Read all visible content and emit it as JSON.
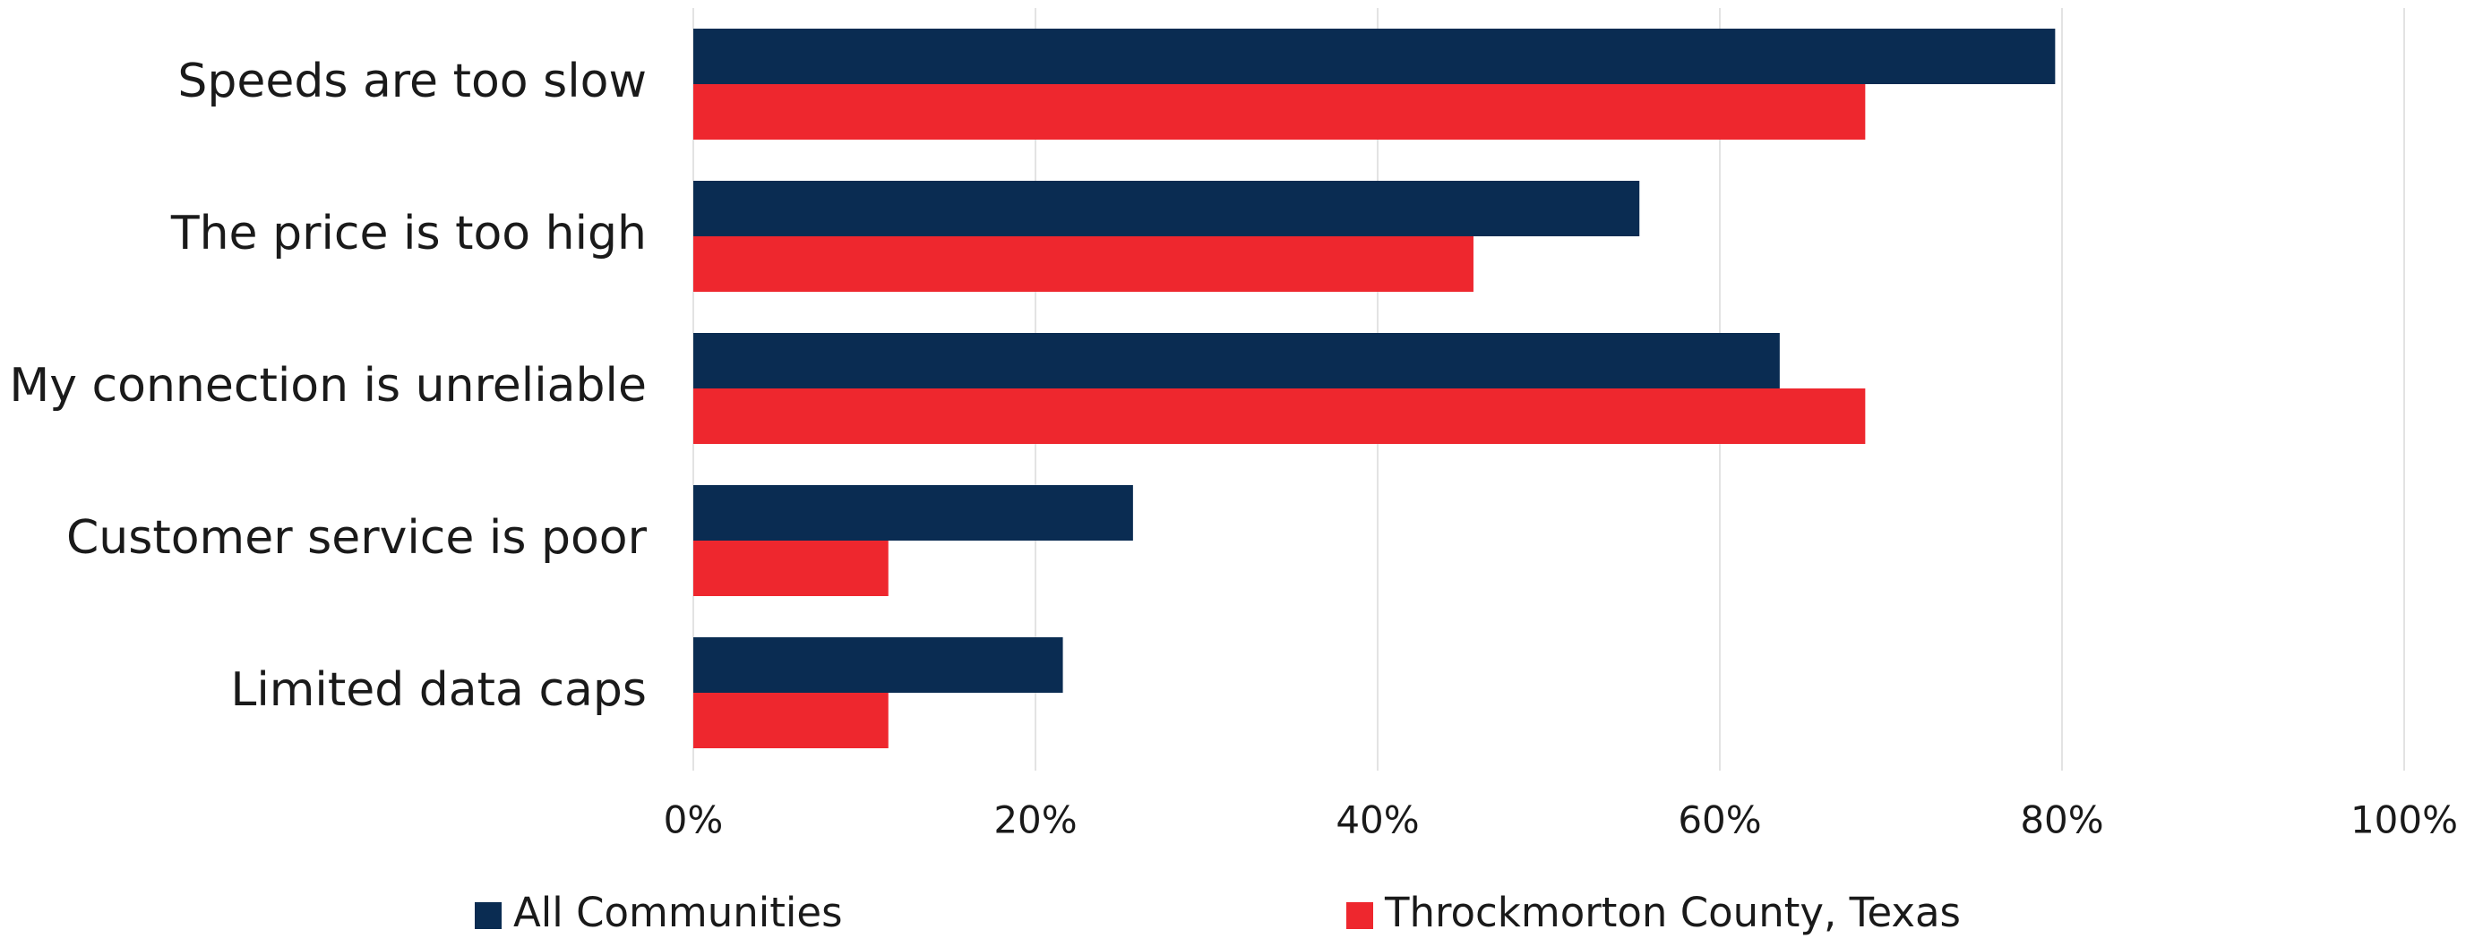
{
  "chart_data": {
    "type": "hbar",
    "categories": [
      "Speeds are too slow",
      "The price is too high",
      "My connection is unreliable",
      "Customer service is poor",
      "Limited data caps"
    ],
    "series": [
      {
        "name": "All Communities",
        "color": "#0a2c52",
        "values": [
          79.6,
          55.3,
          63.5,
          25.7,
          21.6
        ]
      },
      {
        "name": "Throckmorton County, Texas",
        "color": "#ee272e",
        "values": [
          68.5,
          45.6,
          68.5,
          11.4,
          11.4
        ]
      }
    ],
    "xlim": [
      0,
      100
    ],
    "xticks": [
      {
        "value": 0,
        "label": "0%"
      },
      {
        "value": 20,
        "label": "20%"
      },
      {
        "value": 40,
        "label": "40%"
      },
      {
        "value": 60,
        "label": "60%"
      },
      {
        "value": 80,
        "label": "80%"
      },
      {
        "value": 100,
        "label": "100%"
      }
    ],
    "grid": true,
    "legend": "bottom"
  }
}
